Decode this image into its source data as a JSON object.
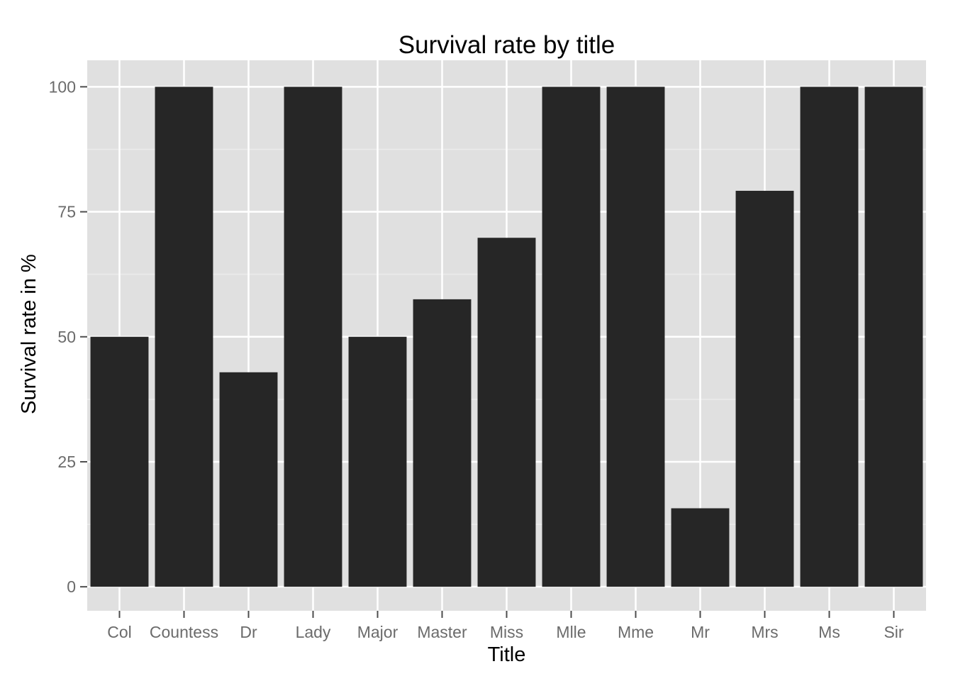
{
  "chart_data": {
    "type": "bar",
    "title": "Survival rate by title",
    "xlabel": "Title",
    "ylabel": "Survival rate in %",
    "categories": [
      "Col",
      "Countess",
      "Dr",
      "Lady",
      "Major",
      "Master",
      "Miss",
      "Mlle",
      "Mme",
      "Mr",
      "Mrs",
      "Ms",
      "Sir"
    ],
    "values": [
      50,
      100,
      42.9,
      100,
      50,
      57.5,
      69.8,
      100,
      100,
      15.7,
      79.2,
      100,
      100
    ],
    "ylim": [
      -4.8,
      105.3
    ],
    "yticks": [
      0,
      25,
      50,
      75,
      100
    ],
    "grid": true,
    "legend": "none",
    "colors": {
      "bar": "#262626",
      "panel": "#e0e0e0",
      "grid_major": "#ffffff",
      "grid_minor": "#ebebeb",
      "tick_text": "#6b6b6b",
      "tick_mark": "#4d4d4d"
    }
  }
}
